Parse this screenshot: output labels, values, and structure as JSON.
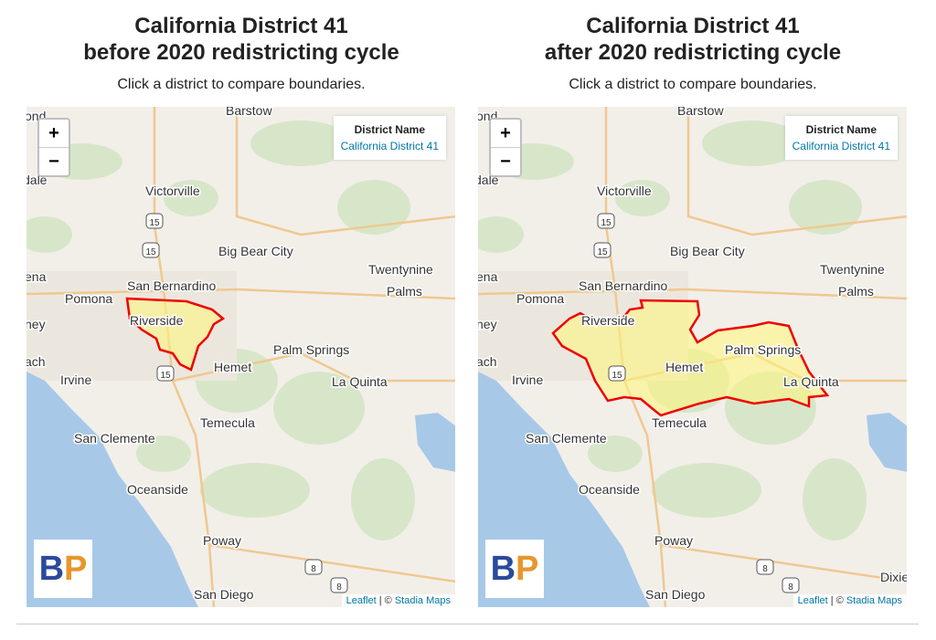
{
  "panels": [
    {
      "title": [
        "California District 41",
        "before 2020 redistricting cycle"
      ],
      "subtitle": "Click a district to compare boundaries.",
      "zoom": [
        "+",
        "−"
      ],
      "info": {
        "heading": "District Name",
        "value": "California District 41"
      },
      "places": [
        "Barstow",
        "ond",
        "dale",
        "Victorville",
        "15",
        "15",
        "Big Bear City",
        "Twentynine",
        "Palms",
        "ena",
        "San Bernardino",
        "Pomona",
        "ney",
        "Riverside",
        "ach",
        "Irvine",
        "Hemet",
        "Palm Springs",
        "La Quinta",
        "15",
        "Temecula",
        "San Clemente",
        "Oceanside",
        "Poway",
        "8",
        "8",
        "San Diego"
      ],
      "logo": [
        "B",
        "P"
      ],
      "attribution": {
        "leaflet": "Leaflet",
        "separator": "| ©",
        "stadia": "Stadia Maps"
      }
    },
    {
      "title": [
        "California District 41",
        "after 2020 redistricting cycle"
      ],
      "subtitle": "Click a district to compare boundaries.",
      "zoom": [
        "+",
        "−"
      ],
      "info": {
        "heading": "District Name",
        "value": "California District 41"
      },
      "places": [
        "Barstow",
        "ond",
        "dale",
        "Victorville",
        "15",
        "15",
        "Big Bear City",
        "Twentynine",
        "Palms",
        "ena",
        "San Bernardino",
        "Pomona",
        "ney",
        "Riverside",
        "ach",
        "Irvine",
        "Hemet",
        "Palm Springs",
        "La Quinta",
        "15",
        "Temecula",
        "San Clemente",
        "Oceanside",
        "Poway",
        "8",
        "8",
        "San Diego",
        "Dixie"
      ],
      "logo": [
        "B",
        "P"
      ],
      "attribution": {
        "leaflet": "Leaflet",
        "separator": "| ©",
        "stadia": "Stadia Maps"
      }
    }
  ]
}
